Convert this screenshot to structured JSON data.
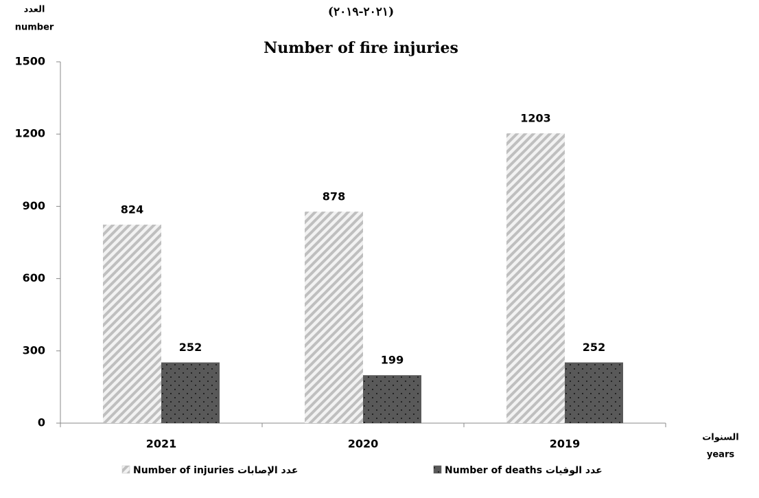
{
  "chart_data": {
    "type": "bar",
    "title": "Number of fire injuries",
    "subtitle": "(٢٠٢١-٢٠١٩)",
    "ylabel": [
      "العدد",
      "number"
    ],
    "xlabel": [
      "السنوات",
      "years"
    ],
    "categories": [
      "2021",
      "2020",
      "2019"
    ],
    "series": [
      {
        "name": "Number of injuries عدد الإصابات",
        "color": "#bfbfbf",
        "pattern": "stripes",
        "values": [
          824,
          878,
          1203
        ]
      },
      {
        "name": "Number of deaths عدد الوفيات",
        "color": "#595959",
        "pattern": "dots",
        "values": [
          252,
          199,
          252
        ]
      }
    ],
    "ylim": [
      0,
      1500
    ],
    "yticks": [
      0,
      300,
      600,
      900,
      1200,
      1500
    ],
    "grid": false,
    "legend": "bottom"
  }
}
